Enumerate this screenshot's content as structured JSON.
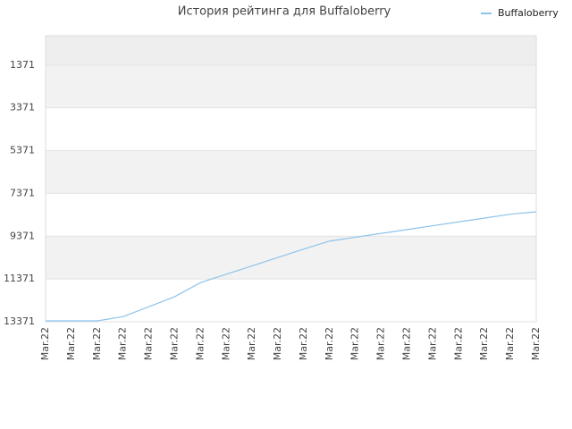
{
  "chart_data": {
    "type": "line",
    "title": "История рейтинга для Buffaloberry",
    "categories": [
      "Mar.22",
      "Mar.22",
      "Mar.22",
      "Mar.22",
      "Mar.22",
      "Mar.22",
      "Mar.22",
      "Mar.22",
      "Mar.22",
      "Mar.22",
      "Mar.22",
      "Mar.22",
      "Mar.22",
      "Mar.22",
      "Mar.22",
      "Mar.22",
      "Mar.22",
      "Mar.22",
      "Mar.22",
      "Mar.22"
    ],
    "series": [
      {
        "name": "Buffaloberry",
        "color": "#8ec3ea",
        "values": [
          13329,
          13329,
          13329,
          13135,
          12667,
          12199,
          11540,
          11149,
          10758,
          10367,
          9975,
          9599,
          9419,
          9240,
          9061,
          8882,
          8702,
          8523,
          8343,
          8232
        ]
      }
    ],
    "ylim": [
      13371,
      0
    ],
    "yticks": [
      1371,
      3371,
      5371,
      7371,
      9371,
      11371,
      13371
    ],
    "legend": "top-right",
    "grid": true
  }
}
